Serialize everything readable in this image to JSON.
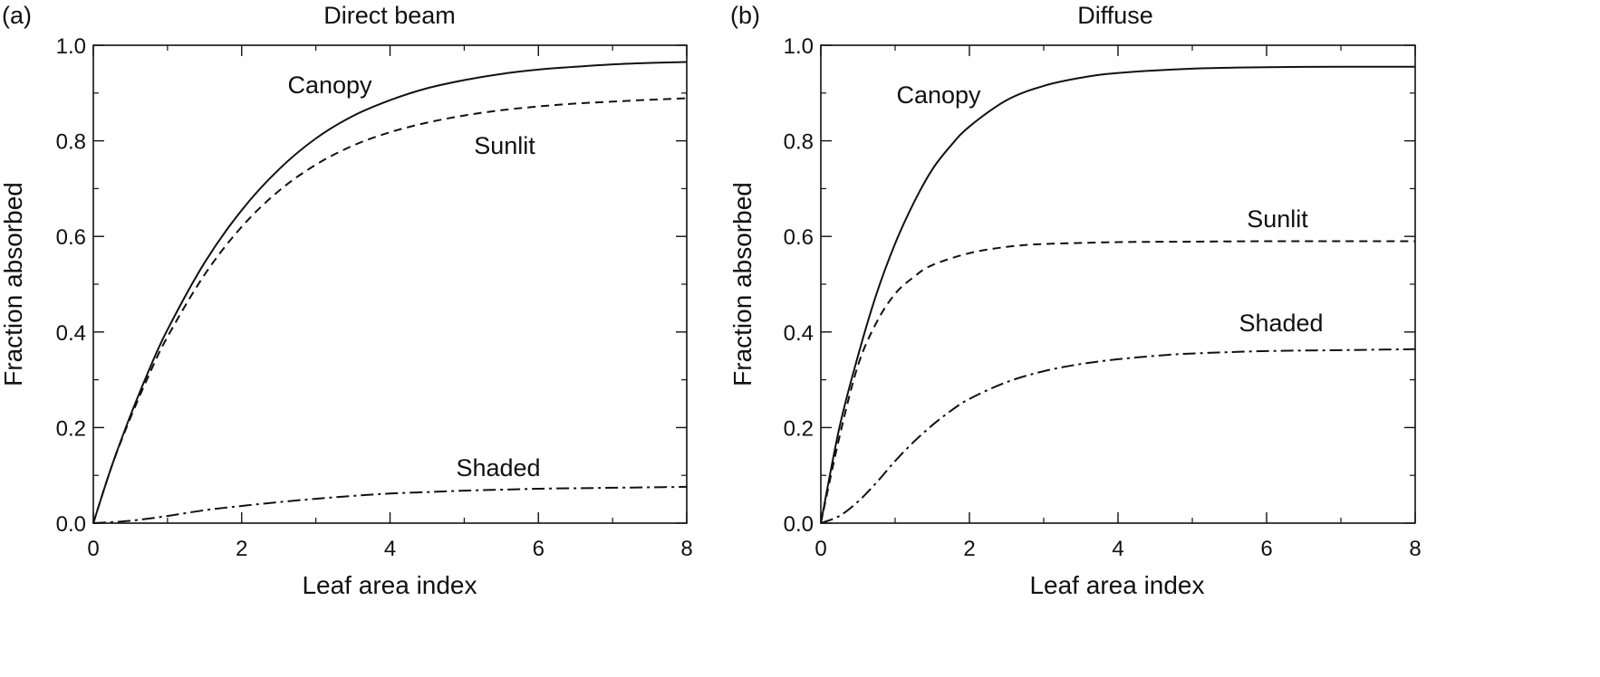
{
  "chart_data": [
    {
      "type": "line",
      "panel_label": "(a)",
      "title": "Direct beam",
      "xlabel": "Leaf area index",
      "ylabel": "Fraction absorbed",
      "xlim": [
        0,
        8
      ],
      "ylim": [
        0,
        1
      ],
      "xticks": [
        "0",
        "2",
        "4",
        "6",
        "8"
      ],
      "yticks": [
        "0.0",
        "0.2",
        "0.4",
        "0.6",
        "0.8",
        "1.0"
      ],
      "grid": false,
      "series": [
        {
          "name": "Canopy",
          "style": "solid",
          "x": [
            0,
            0.25,
            0.5,
            0.75,
            1,
            1.5,
            2,
            2.5,
            3,
            3.5,
            4,
            4.5,
            5,
            5.5,
            6,
            6.5,
            7,
            7.5,
            8
          ],
          "y": [
            0,
            0.12,
            0.225,
            0.32,
            0.405,
            0.545,
            0.655,
            0.74,
            0.805,
            0.852,
            0.885,
            0.91,
            0.927,
            0.94,
            0.949,
            0.955,
            0.96,
            0.963,
            0.965
          ]
        },
        {
          "name": "Sunlit",
          "style": "dashed",
          "x": [
            0,
            0.25,
            0.5,
            0.75,
            1,
            1.5,
            2,
            2.5,
            3,
            3.5,
            4,
            4.5,
            5,
            5.5,
            6,
            6.5,
            7,
            7.5,
            8
          ],
          "y": [
            0,
            0.12,
            0.22,
            0.31,
            0.39,
            0.52,
            0.62,
            0.695,
            0.75,
            0.79,
            0.818,
            0.838,
            0.853,
            0.864,
            0.872,
            0.878,
            0.882,
            0.886,
            0.889
          ]
        },
        {
          "name": "Shaded",
          "style": "dashdot",
          "x": [
            0,
            0.5,
            1,
            1.5,
            2,
            2.5,
            3,
            3.5,
            4,
            4.5,
            5,
            5.5,
            6,
            6.5,
            7,
            7.5,
            8
          ],
          "y": [
            0,
            0.005,
            0.015,
            0.027,
            0.036,
            0.044,
            0.051,
            0.057,
            0.062,
            0.065,
            0.068,
            0.07,
            0.072,
            0.073,
            0.074,
            0.075,
            0.076
          ]
        }
      ]
    },
    {
      "type": "line",
      "panel_label": "(b)",
      "title": "Diffuse",
      "xlabel": "Leaf area index",
      "ylabel": "Fraction absorbed",
      "xlim": [
        0,
        8
      ],
      "ylim": [
        0,
        1
      ],
      "xticks": [
        "0",
        "2",
        "4",
        "6",
        "8"
      ],
      "yticks": [
        "0.0",
        "0.2",
        "0.4",
        "0.6",
        "0.8",
        "1.0"
      ],
      "grid": false,
      "series": [
        {
          "name": "Canopy",
          "style": "solid",
          "x": [
            0,
            0.25,
            0.5,
            0.75,
            1,
            1.25,
            1.5,
            1.75,
            2,
            2.5,
            3,
            3.5,
            4,
            5,
            6,
            7,
            8
          ],
          "y": [
            0,
            0.2,
            0.35,
            0.48,
            0.585,
            0.67,
            0.74,
            0.79,
            0.83,
            0.885,
            0.915,
            0.932,
            0.942,
            0.951,
            0.954,
            0.955,
            0.955
          ]
        },
        {
          "name": "Sunlit",
          "style": "dashed",
          "x": [
            0,
            0.25,
            0.5,
            0.75,
            1,
            1.25,
            1.5,
            2,
            2.5,
            3,
            4,
            5,
            6,
            7,
            8
          ],
          "y": [
            0,
            0.18,
            0.33,
            0.42,
            0.48,
            0.515,
            0.54,
            0.565,
            0.578,
            0.584,
            0.588,
            0.589,
            0.59,
            0.59,
            0.59
          ]
        },
        {
          "name": "Shaded",
          "style": "dashdot",
          "x": [
            0,
            0.25,
            0.5,
            0.75,
            1,
            1.25,
            1.5,
            1.75,
            2,
            2.5,
            3,
            3.5,
            4,
            4.5,
            5,
            6,
            7,
            8
          ],
          "y": [
            0,
            0.015,
            0.045,
            0.085,
            0.13,
            0.17,
            0.205,
            0.235,
            0.26,
            0.295,
            0.318,
            0.333,
            0.343,
            0.35,
            0.355,
            0.36,
            0.362,
            0.364
          ]
        }
      ]
    }
  ]
}
